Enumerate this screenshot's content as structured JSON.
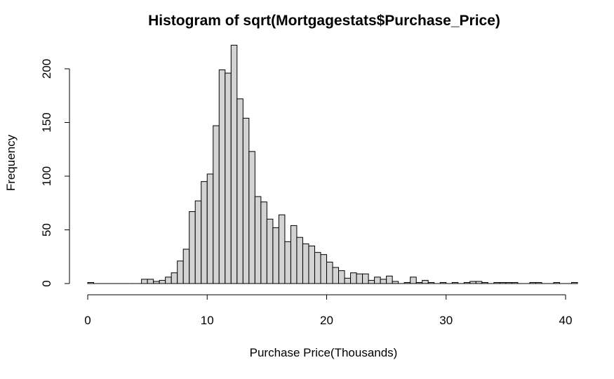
{
  "chart_data": {
    "type": "bar",
    "title": "Histogram of sqrt(Mortgagestats$Purchase_Price)",
    "xlabel": "Purchase Price(Thousands)",
    "ylabel": "Frequency",
    "bin_width": 0.5,
    "bin_start": 0,
    "xlim": [
      0,
      40
    ],
    "ylim": [
      0,
      225
    ],
    "x_ticks": [
      0,
      10,
      20,
      30,
      40
    ],
    "y_ticks": [
      0,
      50,
      100,
      150,
      200
    ],
    "grid": false,
    "legend": "none",
    "bar_fill": "#d3d3d3",
    "bar_stroke": "#000000",
    "values": [
      1,
      0,
      0,
      0,
      0,
      0,
      0,
      0,
      0,
      4,
      4,
      2,
      3,
      6,
      10,
      21,
      32,
      67,
      77,
      95,
      102,
      147,
      199,
      196,
      222,
      172,
      154,
      123,
      81,
      76,
      60,
      52,
      64,
      39,
      54,
      43,
      37,
      35,
      29,
      27,
      20,
      15,
      12,
      5,
      10,
      9,
      9,
      3,
      6,
      4,
      7,
      2,
      0,
      1,
      6,
      1,
      3,
      1,
      0,
      1,
      0,
      1,
      0,
      1,
      2,
      2,
      1,
      0,
      1,
      1,
      1,
      1,
      0,
      0,
      1,
      1,
      0,
      0,
      1,
      0,
      0,
      1
    ]
  }
}
